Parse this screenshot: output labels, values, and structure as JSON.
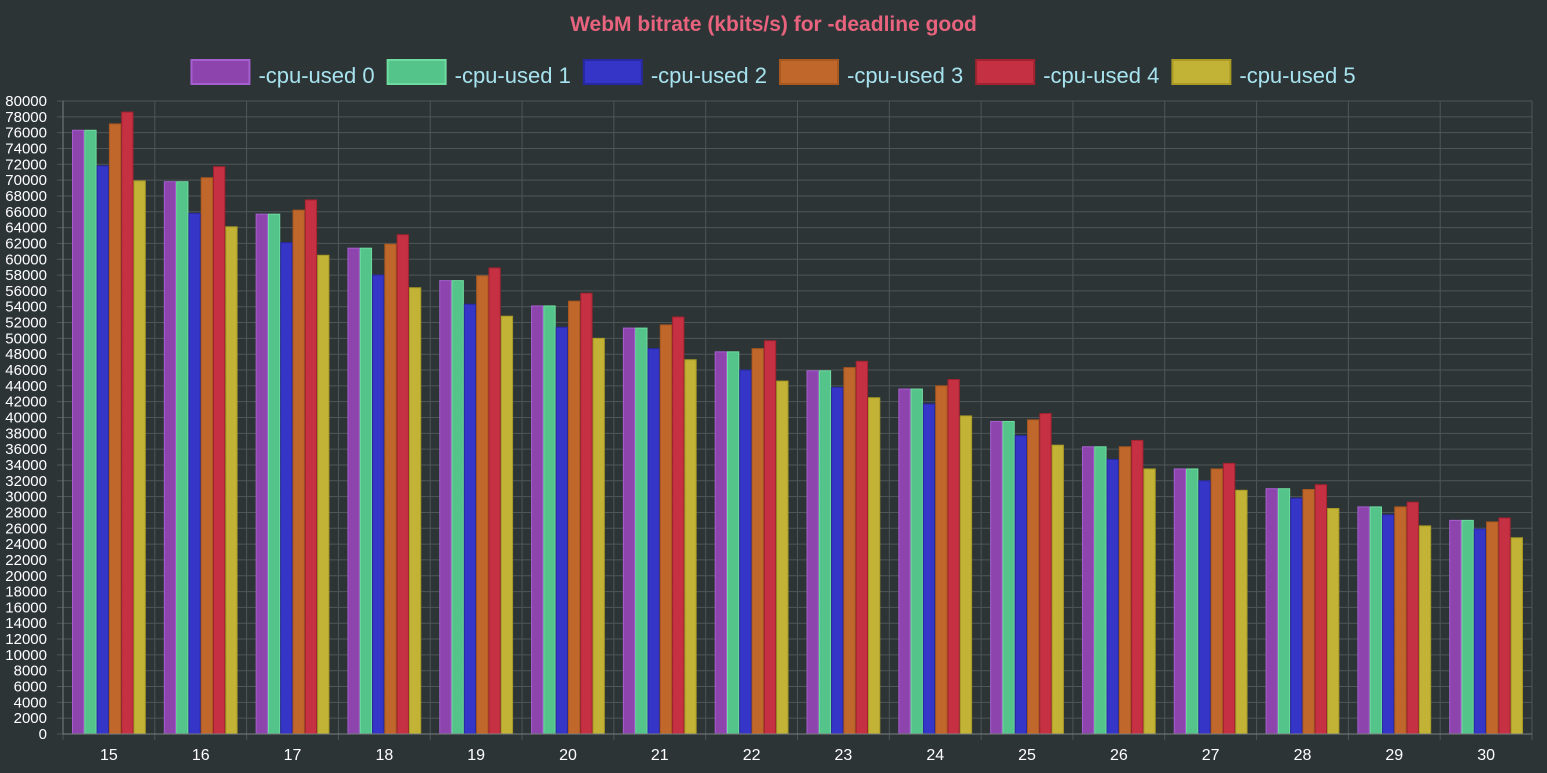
{
  "chart_data": {
    "type": "bar",
    "title": "WebM bitrate (kbits/s) for -deadline good",
    "categories": [
      "15",
      "16",
      "17",
      "18",
      "19",
      "20",
      "21",
      "22",
      "23",
      "24",
      "25",
      "26",
      "27",
      "28",
      "29",
      "30"
    ],
    "ylim": [
      0,
      80000
    ],
    "ytick_step": 2000,
    "grid": true,
    "legend_position": "top",
    "series": [
      {
        "name": "-cpu-used 0",
        "color": "#8e44ad",
        "border": "#a55fd0",
        "values": [
          76300,
          69800,
          65700,
          61400,
          57300,
          54100,
          51300,
          48300,
          45900,
          43600,
          39500,
          36300,
          33500,
          31000,
          28700,
          27000
        ]
      },
      {
        "name": "-cpu-used 1",
        "color": "#55c48a",
        "border": "#6fdc9f",
        "values": [
          76300,
          69800,
          65700,
          61400,
          57300,
          54100,
          51300,
          48300,
          45900,
          43600,
          39500,
          36300,
          33500,
          31000,
          28700,
          27000
        ]
      },
      {
        "name": "-cpu-used 2",
        "color": "#3535c8",
        "border": "#2828a0",
        "values": [
          71800,
          65800,
          62100,
          58000,
          54300,
          51400,
          48700,
          46000,
          43800,
          41700,
          37700,
          34700,
          32000,
          29800,
          27700,
          25900
        ]
      },
      {
        "name": "-cpu-used 3",
        "color": "#c0672c",
        "border": "#a9581f",
        "values": [
          77100,
          70300,
          66200,
          61900,
          57900,
          54700,
          51700,
          48700,
          46300,
          44000,
          39700,
          36300,
          33500,
          30900,
          28700,
          26800
        ]
      },
      {
        "name": "-cpu-used 4",
        "color": "#c53043",
        "border": "#a2232f",
        "values": [
          78600,
          71700,
          67500,
          63100,
          58900,
          55700,
          52700,
          49700,
          47100,
          44800,
          40500,
          37100,
          34200,
          31500,
          29300,
          27300
        ]
      },
      {
        "name": "-cpu-used 5",
        "color": "#c2b235",
        "border": "#a89a25",
        "values": [
          69900,
          64100,
          60500,
          56400,
          52800,
          50000,
          47300,
          44600,
          42500,
          40200,
          36500,
          33500,
          30800,
          28500,
          26300,
          24800
        ]
      }
    ]
  },
  "colors": {
    "background": "#2d3436",
    "title": "#e8637d",
    "text": "#ffffff",
    "legend_text": "#a7e3ef",
    "grid": "#4f5658",
    "axis": "#7a8082"
  }
}
